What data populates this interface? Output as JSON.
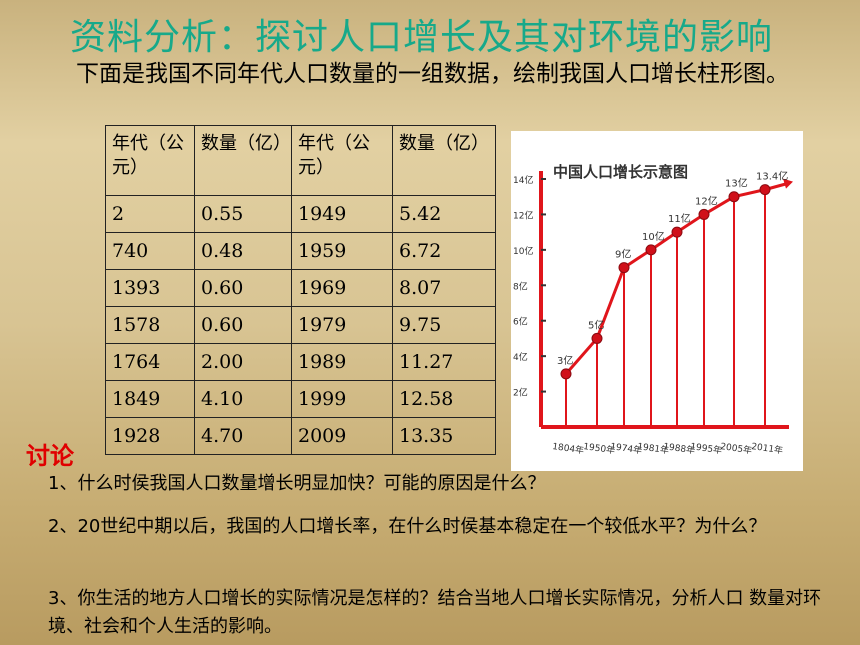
{
  "title": "资料分析：探讨人口增长及其对环境的影响",
  "intro": "下面是我国不同年代人口数量的一组数据，绘制我国人口增长柱形图。",
  "table": {
    "headers": [
      "年代（公元）",
      "数量（亿）",
      "年代（公元）",
      "数量（亿）"
    ],
    "rows": [
      [
        "2",
        "0.55",
        "1949",
        "5.42"
      ],
      [
        "740",
        "0.48",
        "1959",
        "6.72"
      ],
      [
        "1393",
        "0.60",
        "1969",
        "8.07"
      ],
      [
        "1578",
        "0.60",
        "1979",
        "9.75"
      ],
      [
        "1764",
        "2.00",
        "1989",
        "11.27"
      ],
      [
        "1849",
        "4.10",
        "1999",
        "12.58"
      ],
      [
        "1928",
        "4.70",
        "2009",
        "13.35"
      ]
    ]
  },
  "chart_data": {
    "type": "line",
    "title": "中国人口增长示意图",
    "x": [
      "1804年",
      "1950年",
      "1974年",
      "1981年",
      "1988年",
      "1995年",
      "2005年",
      "2011年"
    ],
    "values": [
      3,
      5,
      9,
      10,
      11,
      12,
      13,
      13.4
    ],
    "point_labels": [
      "3亿",
      "5亿",
      "9亿",
      "10亿",
      "11亿",
      "12亿",
      "13亿",
      "13.4亿"
    ],
    "y_ticks": [
      "2亿",
      "4亿",
      "6亿",
      "8亿",
      "10亿",
      "12亿",
      "14亿"
    ],
    "ylim": [
      0,
      14
    ],
    "colors": {
      "line": "#e0151b",
      "marker": "#d0101a",
      "axis": "#e0151b"
    }
  },
  "discussion": {
    "label": "讨论",
    "q1": "1、什么时侯我国人口数量增长明显加快？可能的原因是什么？",
    "q2": "2、20世纪中期以后，我国的人口增长率，在什么时侯基本稳定在一个较低水平？为什么？",
    "q3": "3、你生活的地方人口增长的实际情况是怎样的？结合当地人口增长实际情况，分析人口 数量对环境、社会和个人生活的影响。"
  },
  "colors": {
    "title": "#17a98a",
    "discussion_label": "#e00000"
  }
}
